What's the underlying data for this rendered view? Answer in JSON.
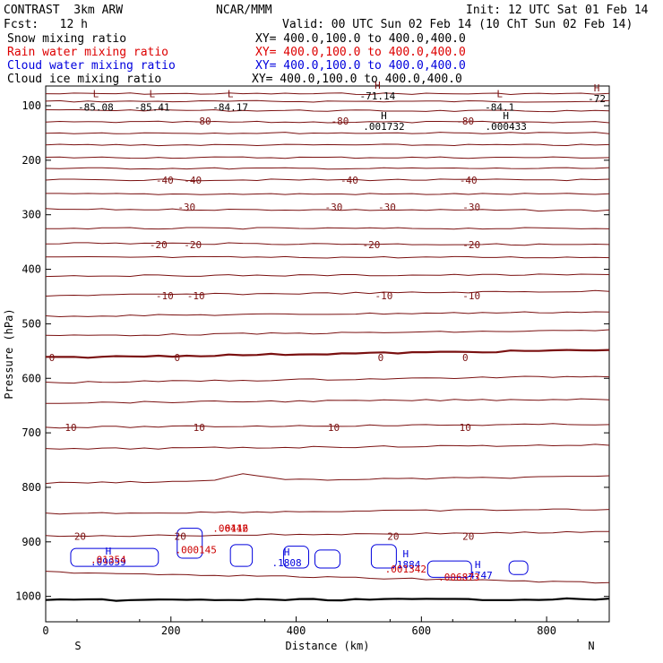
{
  "header": {
    "model": "CONTRAST  3km ARW",
    "org": "NCAR/MMM",
    "init": "Init: 12 UTC Sat 01 Feb 14",
    "fcst": "Fcst:   12 h",
    "valid": "Valid: 00 UTC Sun 02 Feb 14 (10 ChT Sun 02 Feb 14)"
  },
  "fields": [
    {
      "name": "Snow mixing ratio",
      "xy": "XY= 400.0,100.0 to 400.0,400.0",
      "color": "#000000"
    },
    {
      "name": "Rain water mixing ratio",
      "xy": "XY= 400.0,100.0 to 400.0,400.0",
      "color": "#dd0000"
    },
    {
      "name": "Cloud water mixing ratio",
      "xy": "XY= 400.0,100.0 to 400.0,400.0",
      "color": "#0000dd"
    },
    {
      "name": "Cloud ice mixing ratio",
      "xy": "XY= 400.0,100.0 to 400.0,400.0",
      "color": "#000000"
    }
  ],
  "chart_data": {
    "type": "line",
    "xlabel": "Distance (km)",
    "ylabel": "Pressure (hPa)",
    "xlim": [
      0,
      900
    ],
    "ylim": [
      1045,
      50
    ],
    "x_ticks": [
      0,
      200,
      400,
      600,
      800
    ],
    "y_ticks": [
      100,
      200,
      300,
      400,
      500,
      600,
      700,
      800,
      900,
      1000
    ],
    "x_end_labels": {
      "left": "S",
      "right": "N"
    },
    "temperature_color": "#7a1010",
    "cloud_color": "#0000dd",
    "rain_color": "#cc0000",
    "temperature_contour_labels": [
      {
        "value": -80,
        "x": [
          250,
          470,
          670
        ]
      },
      {
        "value": -40,
        "x": [
          190,
          235,
          485,
          675
        ]
      },
      {
        "value": -30,
        "x": [
          225,
          460,
          545,
          680
        ]
      },
      {
        "value": -20,
        "x": [
          180,
          235,
          520,
          680
        ]
      },
      {
        "value": -10,
        "x": [
          190,
          240,
          540,
          680
        ]
      },
      {
        "value": 0,
        "x": [
          10,
          210,
          535,
          670
        ]
      },
      {
        "value": 10,
        "x": [
          40,
          245,
          460,
          670
        ]
      },
      {
        "value": 20,
        "x": [
          55,
          215,
          555,
          675
        ]
      }
    ],
    "lows": [
      {
        "x": 80,
        "p": 88,
        "value": "-85.08"
      },
      {
        "x": 170,
        "p": 88,
        "value": "-85.41"
      },
      {
        "x": 295,
        "p": 88,
        "value": "-84.17"
      },
      {
        "x": 725,
        "p": 88,
        "value": "-84.1"
      }
    ],
    "highs": [
      {
        "x": 530,
        "p": 75,
        "value": "-71.14"
      },
      {
        "x": 880,
        "p": 80,
        "value": "-72"
      }
    ],
    "maxima": [
      {
        "x": 540,
        "p": 118,
        "value": ".001732"
      },
      {
        "x": 735,
        "p": 118,
        "value": ".000433"
      }
    ],
    "cloud_maxima": [
      {
        "x": 100,
        "p": 923,
        "value": ".09059"
      },
      {
        "x": 385,
        "p": 925,
        "value": ".1808"
      },
      {
        "x": 575,
        "p": 928,
        "value": ".1884"
      },
      {
        "x": 690,
        "p": 948,
        "value": ".4747"
      }
    ],
    "rain_maxima": [
      {
        "x": 100,
        "p": 926,
        "value": ".01354"
      },
      {
        "x": 240,
        "p": 908,
        "value": ".000145"
      },
      {
        "x": 295,
        "p": 868,
        "value": ".06442"
      },
      {
        "x": 300,
        "p": 868,
        "value": ".0116"
      },
      {
        "x": 575,
        "p": 943,
        "value": ".001342"
      },
      {
        "x": 660,
        "p": 958,
        "value": ".006873"
      }
    ]
  }
}
